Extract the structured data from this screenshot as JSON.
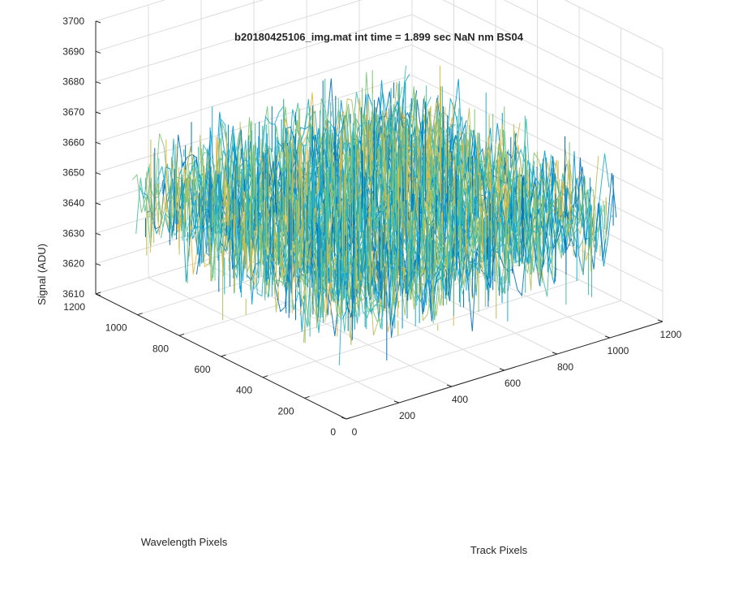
{
  "chart_data": {
    "type": "surface",
    "title": "b20180425106_img.mat int time = 1.899 sec  NaN nm BS04",
    "xlabel": "Track Pixels",
    "ylabel": "Wavelength Pixels",
    "zlabel": "Signal (ADU)",
    "xlim": [
      0,
      1200
    ],
    "ylim": [
      0,
      1200
    ],
    "zlim": [
      3610,
      3700
    ],
    "x_ticks": [
      0,
      200,
      400,
      600,
      800,
      1000,
      1200
    ],
    "y_ticks": [
      0,
      200,
      400,
      600,
      800,
      1000,
      1200
    ],
    "z_ticks": [
      3610,
      3620,
      3630,
      3640,
      3650,
      3660,
      3670,
      3680,
      3690,
      3700
    ],
    "x_tick_labels": [
      "0",
      "200",
      "400",
      "600",
      "800",
      "1000",
      "1200"
    ],
    "y_tick_labels": [
      "0",
      "200",
      "400",
      "600",
      "800",
      "1000",
      "1200"
    ],
    "z_tick_labels": [
      "3610",
      "3620",
      "3630",
      "3640",
      "3650",
      "3660",
      "3670",
      "3680",
      "3690",
      "3700"
    ],
    "data_extent": {
      "x": [
        0,
        1024
      ],
      "y": [
        0,
        1024
      ]
    },
    "signal_mean": 3648,
    "signal_noise_range": [
      3612,
      3695
    ],
    "grid": true,
    "colormap": [
      "#0072bd",
      "#0099d6",
      "#1fb0c8",
      "#45bfa6",
      "#7cc47c",
      "#b8bf55",
      "#e4b63d"
    ]
  }
}
